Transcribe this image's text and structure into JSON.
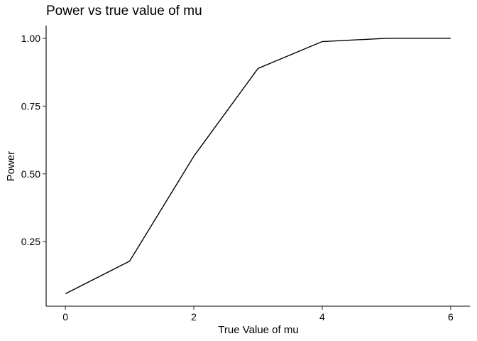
{
  "chart_data": {
    "type": "line",
    "title": "Power vs true value of mu",
    "xlabel": "True Value of mu",
    "ylabel": "Power",
    "xlim": [
      -0.3,
      6.3
    ],
    "ylim": [
      0.012,
      1.047
    ],
    "x_ticks": [
      0,
      2,
      4,
      6
    ],
    "x_tick_labels": [
      "0",
      "2",
      "4",
      "6"
    ],
    "y_ticks": [
      0.25,
      0.5,
      0.75,
      1.0
    ],
    "y_tick_labels": [
      "0.25",
      "0.50",
      "0.75",
      "1.00"
    ],
    "grid": false,
    "legend": "none",
    "series": [
      {
        "x": [
          0,
          1,
          2,
          3,
          4,
          5,
          6
        ],
        "values": [
          0.058,
          0.178,
          0.565,
          0.889,
          0.988,
          1.0,
          1.0
        ]
      }
    ],
    "colors": {
      "line": "#000000",
      "axis": "#000000",
      "background": "#ffffff"
    }
  }
}
